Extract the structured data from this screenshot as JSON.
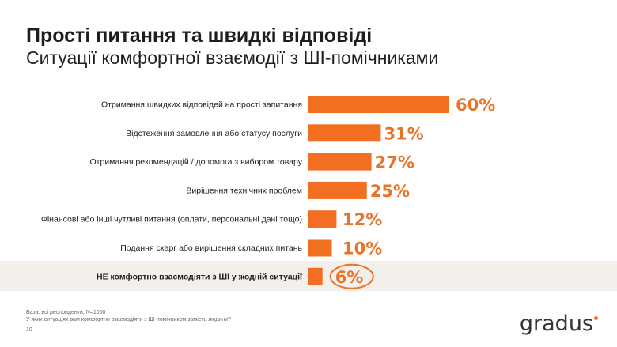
{
  "title": "Прості питання та швидкі відповіді",
  "subtitle": "Ситуації комфортної взаємодії з ШІ-помічниками",
  "chart_data": {
    "type": "bar",
    "orientation": "horizontal",
    "categories": [
      "Отримання швидких відповідей на прості запитання",
      "Відстеження замовлення або статусу послуги",
      "Отримання рекомендацій / допомога з вибором товару",
      "Вирішення технічних проблем",
      "Фінансові або інші чутливі питання (оплати, персональні дані тощо)",
      "Подання скарг або вирішення складних питань",
      "НЕ комфортно взаємодіяти з ШІ у жодній ситуації"
    ],
    "values": [
      60,
      31,
      27,
      25,
      12,
      10,
      6
    ],
    "data_labels": [
      "60%",
      "31%",
      "27%",
      "25%",
      "12%",
      "10%",
      "6%"
    ],
    "highlighted_category": "НЕ комфортно взаємодіяти з ШІ у жодній ситуації",
    "bar_color": "#f26f21",
    "label_color": "#e8742a",
    "xlim": [
      0,
      60
    ],
    "grid": false
  },
  "footer": {
    "base": "База: всі респонденти, N=1000",
    "question": "У яких ситуаціях вам комфортно взаємодіяти з ШІ-помічником замість людини?",
    "page": "10"
  },
  "logo": "gradus"
}
